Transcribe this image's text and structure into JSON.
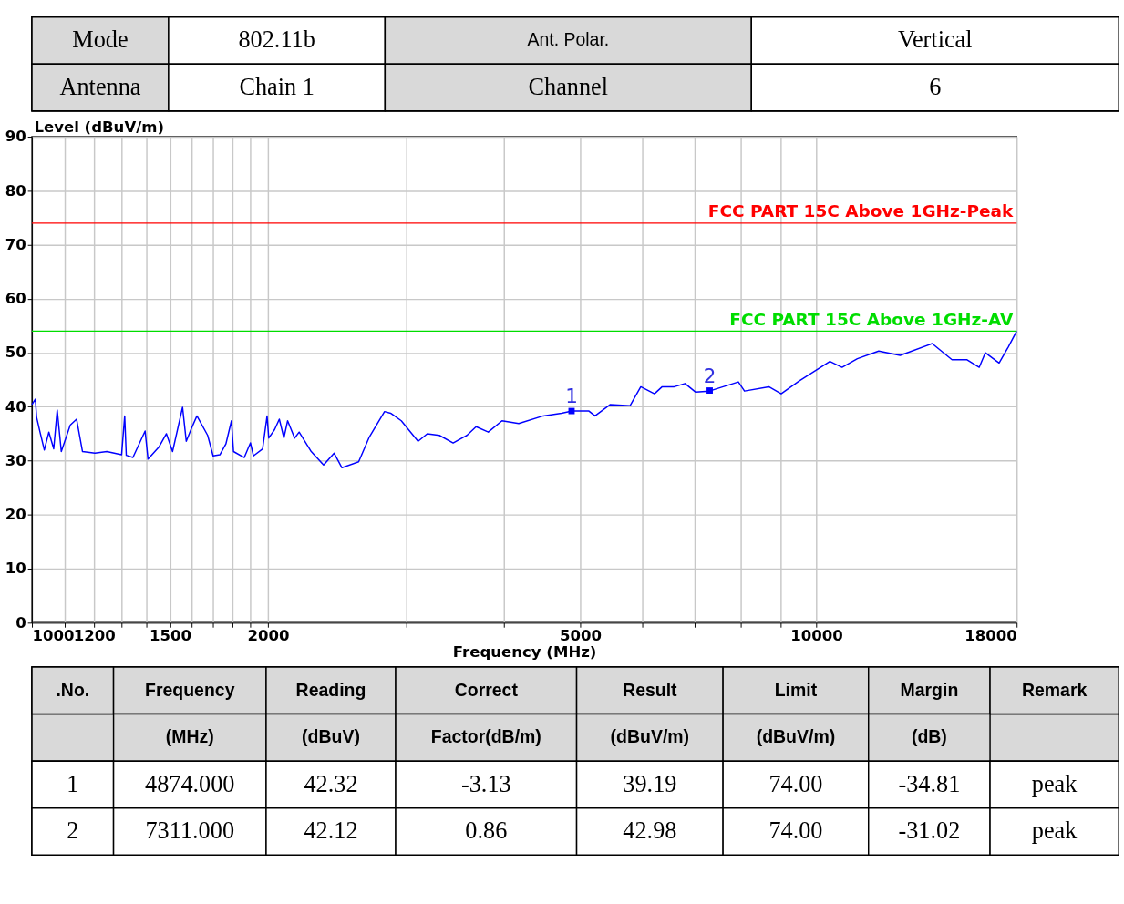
{
  "chart_data": {
    "type": "line",
    "xlabel": "Frequency (MHz)",
    "ylabel": "Level (dBuV/m)",
    "log": "x",
    "grid": true,
    "xlim": [
      1000,
      18000
    ],
    "ylim": [
      0,
      90
    ],
    "xticks": [
      1000,
      {
        "value": 1100,
        "label": null
      },
      1200,
      {
        "value": 1300,
        "label": null
      },
      {
        "value": 1400,
        "label": null
      },
      1500,
      {
        "value": 1600,
        "label": null
      },
      {
        "value": 1700,
        "label": null
      },
      {
        "value": 1800,
        "label": null
      },
      {
        "value": 1900,
        "label": null
      },
      2000,
      {
        "value": 3000,
        "label": null
      },
      {
        "value": 4000,
        "label": null
      },
      5000,
      {
        "value": 6000,
        "label": null
      },
      {
        "value": 7000,
        "label": null
      },
      {
        "value": 8000,
        "label": null
      },
      {
        "value": 9000,
        "label": null
      },
      10000,
      18000
    ],
    "yticks": [
      0,
      10,
      20,
      30,
      40,
      50,
      60,
      70,
      80,
      90
    ],
    "series": [
      {
        "color": "#0000ff",
        "x": [
          1000,
          1010,
          1014,
          1024,
          1037,
          1051,
          1066,
          1077,
          1090,
          1119,
          1140,
          1160,
          1203,
          1246,
          1301,
          1313,
          1319,
          1345,
          1394,
          1406,
          1451,
          1484,
          1511,
          1556,
          1573,
          1595,
          1623,
          1675,
          1702,
          1736,
          1767,
          1796,
          1807,
          1865,
          1899,
          1916,
          1968,
          1994,
          2004,
          2039,
          2067,
          2095,
          2118,
          2162,
          2191,
          2270,
          2354,
          2428,
          2484,
          2609,
          2692,
          2815,
          2866,
          2957,
          3106,
          3191,
          3307,
          3443,
          3585,
          3683,
          3817,
          3974,
          4174,
          4485,
          4732,
          4882,
          5129,
          5221,
          5461,
          5788,
          5972,
          6217,
          6359,
          6590,
          6800,
          7016,
          7304,
          7953,
          8097,
          8698,
          9017,
          9514,
          10404,
          10782,
          11278,
          12007,
          12786,
          14047,
          14887,
          15562,
          16128,
          16421,
          17096,
          17569,
          18000
        ],
        "values": [
          40.4,
          41.4,
          38.0,
          35.3,
          32.0,
          35.3,
          32.2,
          39.4,
          31.7,
          36.6,
          37.7,
          31.7,
          31.4,
          31.7,
          31.1,
          38.3,
          31.0,
          30.6,
          35.5,
          30.3,
          32.5,
          35.0,
          31.7,
          39.9,
          33.6,
          35.8,
          38.3,
          34.7,
          30.9,
          31.1,
          33.1,
          37.4,
          31.7,
          30.6,
          33.3,
          30.9,
          32.2,
          38.3,
          34.2,
          35.8,
          37.7,
          34.2,
          37.4,
          34.2,
          35.3,
          31.7,
          29.2,
          31.4,
          28.7,
          29.8,
          34.4,
          39.1,
          38.8,
          37.4,
          33.6,
          35.0,
          34.7,
          33.3,
          34.7,
          36.3,
          35.3,
          37.4,
          36.9,
          38.3,
          38.8,
          39.2,
          39.2,
          38.3,
          40.4,
          40.2,
          43.7,
          42.4,
          43.7,
          43.7,
          44.3,
          42.7,
          42.9,
          44.6,
          42.9,
          43.7,
          42.4,
          44.8,
          48.4,
          47.3,
          48.9,
          50.3,
          49.5,
          51.7,
          48.7,
          48.7,
          47.3,
          50.0,
          48.1,
          51.1,
          54.0
        ]
      },
      {
        "type": "scatter",
        "color": "#0000ff",
        "marker": "square",
        "x": [
          4874,
          7311
        ],
        "values": [
          39.2,
          43.0
        ]
      }
    ],
    "ref_lines": [
      {
        "axis": "y",
        "value": 74,
        "label": "FCC PART 15C Above 1GHz-Peak",
        "color": "#ff0000"
      },
      {
        "axis": "y",
        "value": 54,
        "label": "FCC PART 15C Above 1GHz-AV",
        "color": "#00dd00"
      }
    ],
    "annotations": [
      "Mode",
      "802.11b",
      "Ant. Polar.",
      "Vertical",
      "Antenna",
      "Chain 1",
      "Channel",
      "6",
      ".No.",
      "Frequency",
      "Reading",
      "Correct",
      "Result",
      "Limit",
      "Margin",
      "Remark",
      "(MHz)",
      "(dBuV)",
      "Factor(dB/m)",
      "(dBuV/m)",
      "(dBuV/m)",
      "(dB)",
      "1",
      "4874.000",
      "42.32",
      "-3.13",
      "39.19",
      "74.00",
      "-34.81",
      "peak",
      "2",
      "7311.000",
      "42.12",
      "0.86",
      "42.98",
      "74.00",
      "-31.02",
      "peak",
      {
        "text": "1",
        "x": 4874,
        "y": 39.2
      },
      {
        "text": "2",
        "x": 7311,
        "y": 43.0
      }
    ]
  }
}
